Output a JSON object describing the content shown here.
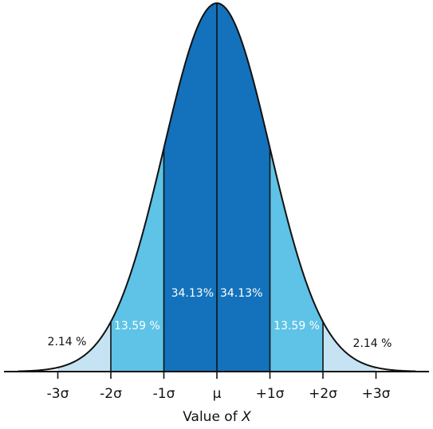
{
  "chart_data": {
    "type": "area",
    "title": "",
    "xlabel": "Value of X",
    "xlabel_parts": {
      "prefix": "Value of ",
      "italic": "X"
    },
    "ylabel": "",
    "xlim": [
      -3.75,
      3.75
    ],
    "grid": false,
    "legend": "none",
    "tick_labels": [
      "-3σ",
      "-2σ",
      "-1σ",
      "μ",
      "+1σ",
      "+2σ",
      "+3σ"
    ],
    "ticks_sigma": [
      -3,
      -2,
      -1,
      0,
      1,
      2,
      3
    ],
    "series": [
      {
        "from": -3,
        "to": -2,
        "percent": 2.14,
        "label": "2.14 %",
        "color": "#c5e3f3"
      },
      {
        "from": -2,
        "to": -1,
        "percent": 13.59,
        "label": "13.59 %",
        "color": "#5ec3e6"
      },
      {
        "from": -1,
        "to": 0,
        "percent": 34.13,
        "label": "34.13%",
        "color": "#1372bb"
      },
      {
        "from": 0,
        "to": 1,
        "percent": 34.13,
        "label": "34.13%",
        "color": "#1372bb"
      },
      {
        "from": 1,
        "to": 2,
        "percent": 13.59,
        "label": "13.59 %",
        "color": "#5ec3e6"
      },
      {
        "from": 2,
        "to": 3,
        "percent": 2.14,
        "label": "2.14 %",
        "color": "#c5e3f3"
      }
    ],
    "colors": {
      "center": "#1372bb",
      "middle": "#5ec3e6",
      "outer": "#c5e3f3",
      "outline": "#111111"
    }
  }
}
